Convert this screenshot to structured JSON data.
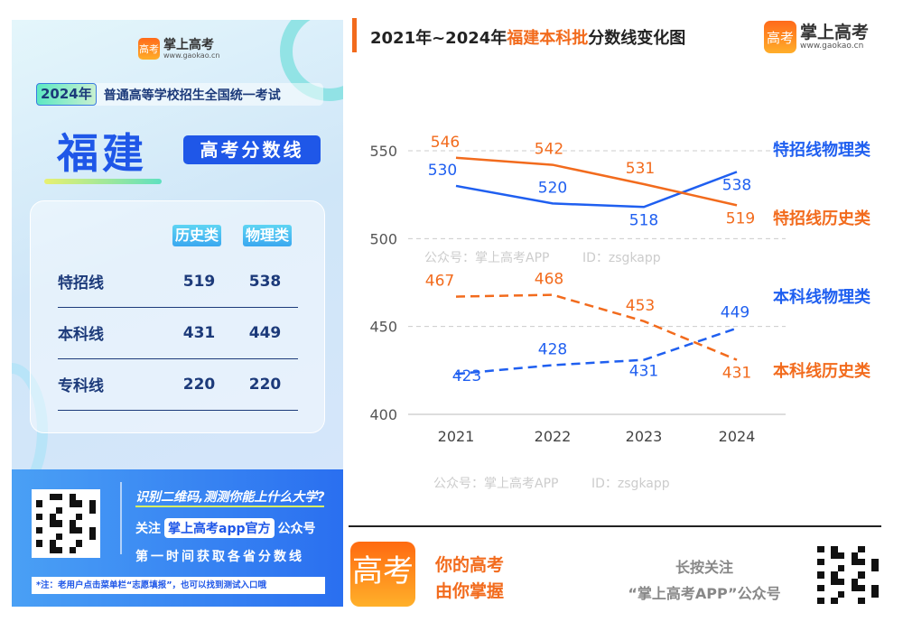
{
  "left_panel": {
    "logo_name": "掌上高考",
    "logo_url": "www.gaokao.cn",
    "logo_icon_text": "高考",
    "exam_year": "2024年",
    "exam_name": "普通高等学校招生全国统一考试",
    "province": "福建",
    "subtitle": "高考分数线",
    "table": {
      "headers": [
        "历史类",
        "物理类"
      ],
      "rows": [
        {
          "name": "特招线",
          "history": "519",
          "physics": "538"
        },
        {
          "name": "本科线",
          "history": "431",
          "physics": "449"
        },
        {
          "name": "专科线",
          "history": "220",
          "physics": "220"
        }
      ]
    },
    "promo": {
      "line1": "识别二维码,测测你能上什么大学?",
      "follow_prefix": "关注",
      "follow_account": "掌上高考app官方",
      "follow_suffix": "公众号",
      "line3": "第一时间获取各省分数线",
      "note": "*注：老用户点击菜单栏“志愿填报”，也可以找到测试入口哦"
    }
  },
  "header": {
    "title_prefix": "2021年~2024年",
    "title_highlight": "福建本科批",
    "title_suffix": "分数线变化图",
    "logo_name": "掌上高考",
    "logo_url": "www.gaokao.cn"
  },
  "watermark": {
    "line1": "公众号：掌上高考APP",
    "line2": "ID：zsgkapp"
  },
  "colors": {
    "orange": "#f26b1d",
    "blue": "#1f5ff0"
  },
  "chart_data": {
    "type": "line",
    "title": "2021年~2024年福建本科批分数线变化图",
    "categories": [
      "2021",
      "2022",
      "2023",
      "2024"
    ],
    "ylim": [
      400,
      550
    ],
    "yticks": [
      "400",
      "450",
      "500",
      "550"
    ],
    "grid": true,
    "legend": "right (labels at line ends)",
    "series": [
      {
        "name": "特招线物理类",
        "values": [
          530,
          520,
          518,
          538
        ],
        "color": "#1f5ff0",
        "style": "solid"
      },
      {
        "name": "特招线历史类",
        "values": [
          546,
          542,
          531,
          519
        ],
        "color": "#f26b1d",
        "style": "solid"
      },
      {
        "name": "本科线物理类",
        "values": [
          423,
          428,
          431,
          449
        ],
        "color": "#1f5ff0",
        "style": "dashed"
      },
      {
        "name": "本科线历史类",
        "values": [
          467,
          468,
          453,
          431
        ],
        "color": "#f26b1d",
        "style": "dashed"
      }
    ]
  },
  "footer": {
    "slogan_line1": "你的高考",
    "slogan_line2": "由你掌握",
    "follow_line1": "长按关注",
    "follow_line2": "“掌上高考APP”公众号",
    "app_icon_text": "高考"
  }
}
